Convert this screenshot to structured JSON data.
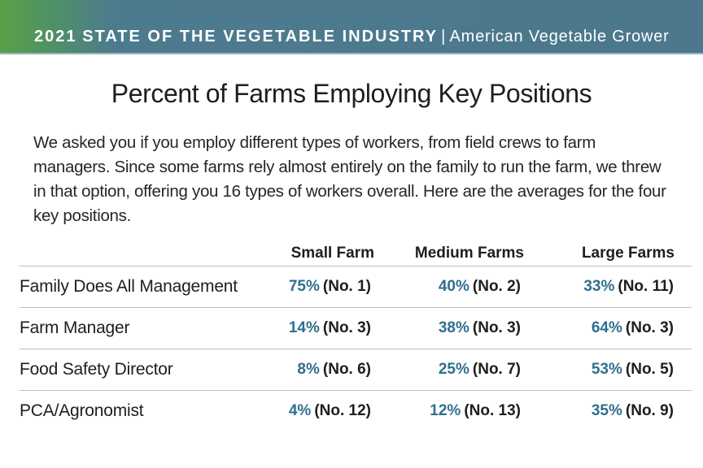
{
  "banner": {
    "year": "2021",
    "title": "STATE OF THE VEGETABLE INDUSTRY",
    "separator": "|",
    "publication": "American Vegetable Grower"
  },
  "heading": "Percent of Farms Employing Key Positions",
  "intro": "We asked you if you employ different types of workers, from field crews to farm managers. Since some farms rely almost entirely on the family to run the farm, we threw in that option, offering you 16 types of workers overall. Here are the averages for the four key positions.",
  "colors": {
    "accent": "#2f6f8f",
    "banner_green": "#5aa046",
    "banner_blue": "#4c778c",
    "rule": "#a9c2cf"
  },
  "table": {
    "columns": [
      "Small Farm",
      "Medium Farms",
      "Large Farms"
    ],
    "rows": [
      {
        "position": "Family Does All Management",
        "cells": [
          {
            "pct": "75%",
            "rank": "(No. 1)"
          },
          {
            "pct": "40%",
            "rank": "(No. 2)"
          },
          {
            "pct": "33%",
            "rank": "(No. 11)"
          }
        ]
      },
      {
        "position": "Farm Manager",
        "cells": [
          {
            "pct": "14%",
            "rank": "(No. 3)"
          },
          {
            "pct": "38%",
            "rank": "(No. 3)"
          },
          {
            "pct": "64%",
            "rank": "(No. 3)"
          }
        ]
      },
      {
        "position": "Food Safety Director",
        "cells": [
          {
            "pct": "8%",
            "rank": "(No. 6)"
          },
          {
            "pct": "25%",
            "rank": "(No. 7)"
          },
          {
            "pct": "53%",
            "rank": "(No. 5)"
          }
        ]
      },
      {
        "position": "PCA/Agronomist",
        "cells": [
          {
            "pct": "4%",
            "rank": "(No. 12)"
          },
          {
            "pct": "12%",
            "rank": "(No. 13)"
          },
          {
            "pct": "35%",
            "rank": "(No. 9)"
          }
        ]
      }
    ]
  }
}
